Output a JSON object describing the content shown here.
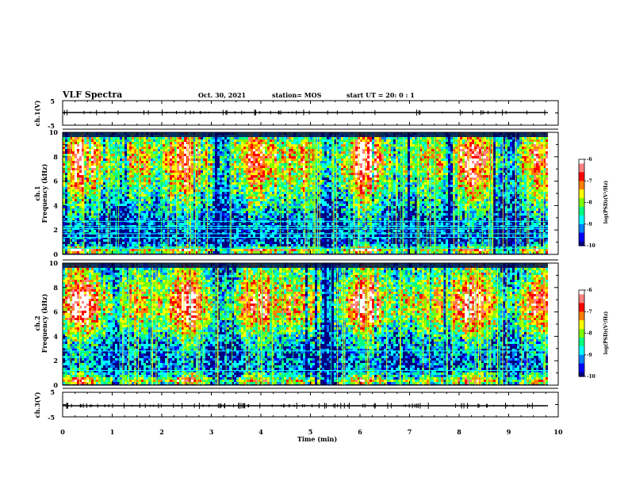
{
  "header": {
    "title": "VLF Spectra",
    "date": "Oct. 30, 2021",
    "station": "station= MOS",
    "start": "start  UT =   20: 0  : 1"
  },
  "colors": {
    "jet": [
      "#000080",
      "#0000ff",
      "#0080ff",
      "#00ffff",
      "#00ff80",
      "#80ff00",
      "#ffff00",
      "#ff8000",
      "#ff0000",
      "#ff8080",
      "#ffffff"
    ],
    "trace": "#000000",
    "axis": "#000000"
  },
  "chart_data": [
    {
      "type": "line",
      "panel": "ch1-waveform",
      "ylabel": "ch.1(V)",
      "xlim": [
        0,
        10
      ],
      "ylim": [
        -5,
        5
      ],
      "yticks": [
        "5",
        "-5"
      ],
      "series": [
        {
          "x": [
            0,
            10
          ],
          "y": [
            0,
            0
          ]
        }
      ]
    },
    {
      "type": "heatmap",
      "panel": "ch1-spectrogram",
      "ylabel": "ch.1\nFrequency (kHz)",
      "xlim": [
        0,
        10
      ],
      "ylim": [
        0,
        10
      ],
      "yticks": [
        "0",
        "2",
        "4",
        "6",
        "8",
        "10"
      ],
      "colorbar": {
        "label": "log(PSD)(V²/Hz)",
        "range": [
          -10,
          -6
        ],
        "ticks": [
          "-6",
          "-7",
          "-8",
          "-9",
          "-10"
        ]
      },
      "lines_kHz": [
        0.5,
        1.4,
        1.7,
        2.1,
        2.3,
        2.7
      ],
      "band_profile": [
        [
          0,
          0.5
        ],
        [
          0.3,
          0.9
        ],
        [
          0.6,
          0.3
        ],
        [
          1.0,
          0.15
        ],
        [
          2.0,
          0.2
        ],
        [
          3.5,
          0.35
        ],
        [
          5.0,
          0.55
        ],
        [
          6.0,
          0.7
        ],
        [
          7.5,
          0.85
        ],
        [
          8.5,
          0.85
        ],
        [
          9.5,
          0.6
        ],
        [
          10,
          0.4
        ]
      ]
    },
    {
      "type": "heatmap",
      "panel": "ch2-spectrogram",
      "ylabel": "ch.2\nFrequency (kHz)",
      "xlim": [
        0,
        10
      ],
      "ylim": [
        0,
        10
      ],
      "yticks": [
        "0",
        "2",
        "4",
        "6",
        "8",
        "10"
      ],
      "colorbar": {
        "label": "log(PSD)(V²/Hz)",
        "range": [
          -10,
          -6
        ],
        "ticks": [
          "-6",
          "-7",
          "-8",
          "-9",
          "-10"
        ]
      },
      "lines_kHz": [
        1.2,
        2.8
      ],
      "band_profile": [
        [
          0,
          0.5
        ],
        [
          0.3,
          0.75
        ],
        [
          0.7,
          0.45
        ],
        [
          1.2,
          0.25
        ],
        [
          2.0,
          0.2
        ],
        [
          3.5,
          0.35
        ],
        [
          5.0,
          0.65
        ],
        [
          6.0,
          0.85
        ],
        [
          7.0,
          0.88
        ],
        [
          8.0,
          0.72
        ],
        [
          9.0,
          0.55
        ],
        [
          10,
          0.45
        ]
      ]
    },
    {
      "type": "line",
      "panel": "ch3-waveform",
      "ylabel": "ch.3(V)",
      "xlim": [
        0,
        10
      ],
      "ylim": [
        -5,
        5
      ],
      "yticks": [
        "5",
        "-5"
      ],
      "series": [
        {
          "x": [
            0,
            10
          ],
          "y": [
            0,
            0
          ]
        }
      ]
    }
  ],
  "xaxis": {
    "label": "Time  (min)",
    "ticks": [
      "0",
      "1",
      "2",
      "3",
      "4",
      "5",
      "6",
      "7",
      "8",
      "9",
      "10"
    ]
  }
}
